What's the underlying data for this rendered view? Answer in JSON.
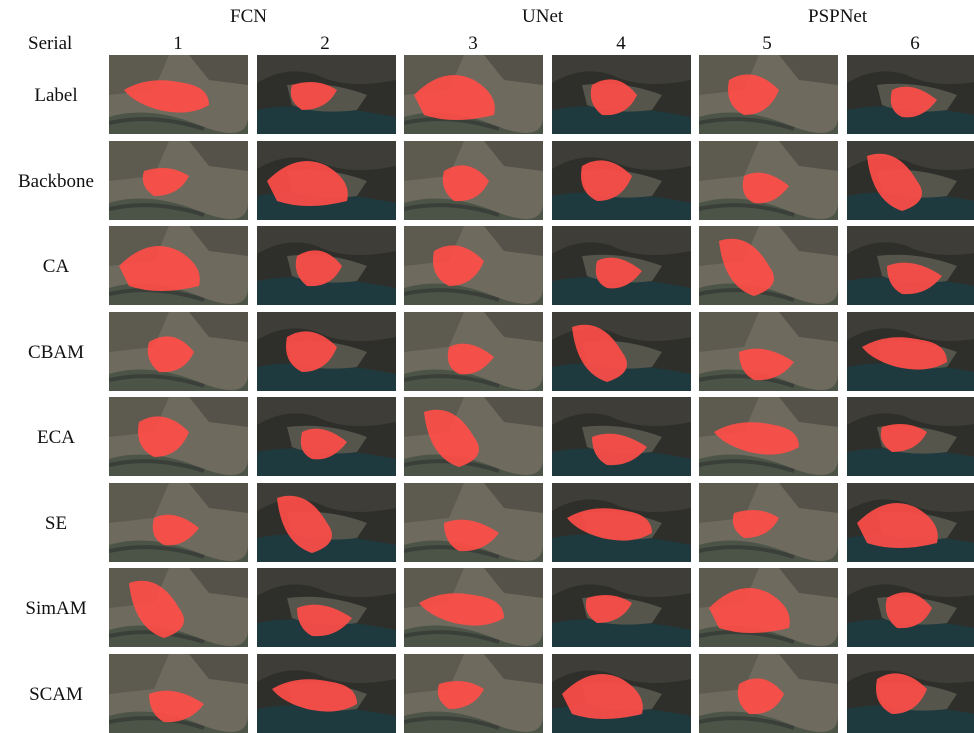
{
  "header": {
    "serial_label": "Serial",
    "groups": [
      {
        "label": "FCN",
        "columns": [
          "1",
          "2"
        ]
      },
      {
        "label": "UNet",
        "columns": [
          "3",
          "4"
        ]
      },
      {
        "label": "PSPNet",
        "columns": [
          "5",
          "6"
        ]
      }
    ]
  },
  "rows": [
    "Label",
    "Backbone",
    "CA",
    "CBAM",
    "ECA",
    "SE",
    "SimAM",
    "SCAM"
  ],
  "colors": {
    "mask": "#ff4d48",
    "terrain": "#6f6a5e",
    "water": "#1f3a3e",
    "road": "#3b3f39"
  },
  "scenes": [
    "a",
    "b",
    "a",
    "b",
    "a",
    "b"
  ]
}
